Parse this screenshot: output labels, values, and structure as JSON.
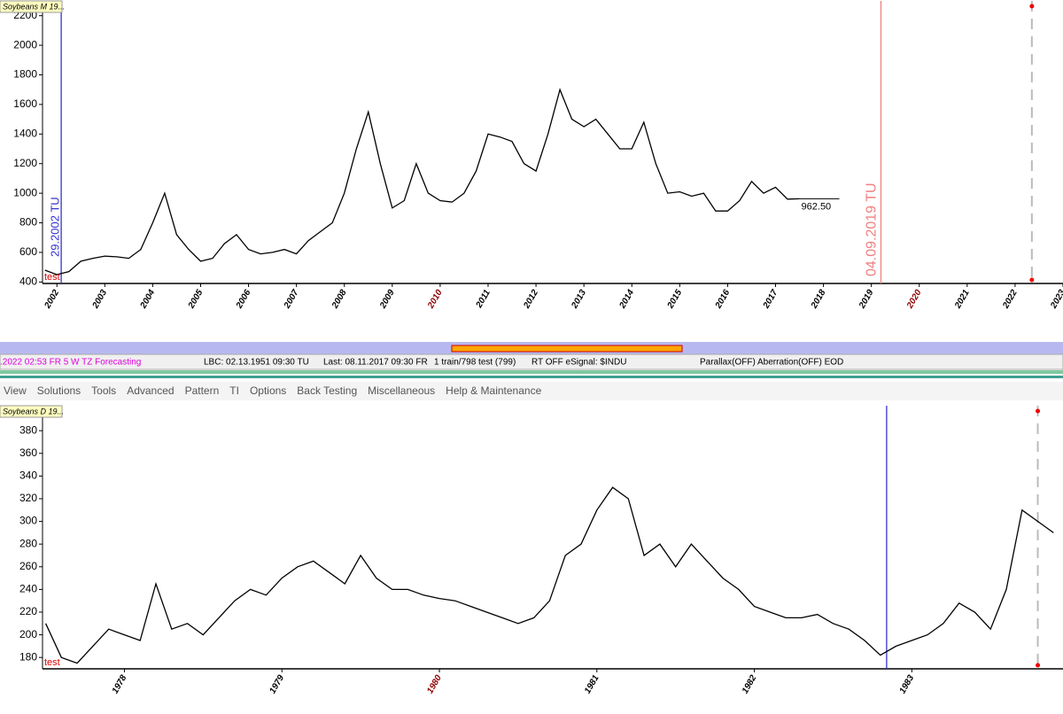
{
  "chart_data": [
    {
      "type": "line",
      "title": "Soybeans M 19...",
      "tag": "test",
      "color": "#000000",
      "xlim": [
        2001.7,
        2023
      ],
      "ylim": [
        390,
        2300
      ],
      "yticks": [
        400,
        600,
        800,
        1000,
        1200,
        1400,
        1600,
        1800,
        2000,
        2200
      ],
      "xticks": [
        2002,
        2003,
        2004,
        2005,
        2006,
        2007,
        2008,
        2009,
        2010,
        2011,
        2012,
        2013,
        2014,
        2015,
        2016,
        2017,
        2018,
        2019,
        2020,
        2021,
        2022,
        2023
      ],
      "xtick_colors": [
        "#000",
        "#000",
        "#000",
        "#000",
        "#000",
        "#000",
        "#000",
        "#000",
        "#8b0000",
        "#000",
        "#000",
        "#000",
        "#000",
        "#000",
        "#000",
        "#000",
        "#000",
        "#000",
        "#8b0000",
        "#000",
        "#000",
        "#000"
      ],
      "x": [
        2001.75,
        2002,
        2002.25,
        2002.5,
        2002.75,
        2003,
        2003.25,
        2003.5,
        2003.75,
        2004,
        2004.25,
        2004.5,
        2004.75,
        2005,
        2005.25,
        2005.5,
        2005.75,
        2006,
        2006.25,
        2006.5,
        2006.75,
        2007,
        2007.25,
        2007.5,
        2007.75,
        2008,
        2008.25,
        2008.5,
        2008.75,
        2009,
        2009.25,
        2009.5,
        2009.75,
        2010,
        2010.25,
        2010.5,
        2010.75,
        2011,
        2011.25,
        2011.5,
        2011.75,
        2012,
        2012.25,
        2012.5,
        2012.75,
        2013,
        2013.25,
        2013.5,
        2013.75,
        2014,
        2014.25,
        2014.5,
        2014.75,
        2015,
        2015.25,
        2015.5,
        2015.75,
        2016,
        2016.25,
        2016.5,
        2016.75,
        2017,
        2017.25,
        2017.5
      ],
      "values": [
        480,
        450,
        470,
        540,
        560,
        575,
        570,
        560,
        620,
        800,
        1000,
        720,
        620,
        540,
        560,
        660,
        720,
        620,
        590,
        600,
        620,
        590,
        680,
        740,
        800,
        1000,
        1300,
        1550,
        1200,
        900,
        950,
        1200,
        1000,
        950,
        940,
        1000,
        1150,
        1400,
        1380,
        1350,
        1200,
        1150,
        1400,
        1700,
        1500,
        1450,
        1500,
        1400,
        1300,
        1300,
        1480,
        1200,
        1000,
        1010,
        980,
        1000,
        880,
        880,
        950,
        1080,
        1000,
        1040,
        960,
        962.5
      ],
      "last_label": "962.50",
      "vlines": [
        {
          "x": 2002.09,
          "color": "#3333cc",
          "label": "29.2002 TU",
          "dash": false
        },
        {
          "x": 2019.2,
          "color": "#f08080",
          "label": "04.09.2019 TU",
          "dash": false
        },
        {
          "x": 2022.35,
          "color": "#bbbbbb",
          "dash": true
        }
      ]
    },
    {
      "type": "line",
      "title": "Soybeans D 19...",
      "tag": "test",
      "color": "#000000",
      "xlim": [
        1977.48,
        1983.96
      ],
      "ylim": [
        170,
        402
      ],
      "yticks": [
        180,
        200,
        220,
        240,
        260,
        280,
        300,
        320,
        340,
        360,
        380
      ],
      "xticks": [
        1978,
        1979,
        1980,
        1981,
        1982,
        1983
      ],
      "xtick_colors": [
        "#000",
        "#000",
        "#8b0000",
        "#000",
        "#000",
        "#000"
      ],
      "x": [
        1977.5,
        1977.6,
        1977.7,
        1977.8,
        1977.9,
        1978,
        1978.1,
        1978.2,
        1978.3,
        1978.4,
        1978.5,
        1978.6,
        1978.7,
        1978.8,
        1978.9,
        1979,
        1979.1,
        1979.2,
        1979.3,
        1979.4,
        1979.5,
        1979.6,
        1979.7,
        1979.8,
        1979.9,
        1980,
        1980.1,
        1980.2,
        1980.3,
        1980.4,
        1980.5,
        1980.6,
        1980.7,
        1980.8,
        1980.9,
        1981,
        1981.1,
        1981.2,
        1981.3,
        1981.4,
        1981.5,
        1981.6,
        1981.7,
        1981.8,
        1981.9,
        1982,
        1982.1,
        1982.2,
        1982.3,
        1982.4,
        1982.5,
        1982.6,
        1982.7,
        1982.8,
        1982.9,
        1983,
        1983.1,
        1983.2,
        1983.3,
        1983.4,
        1983.5,
        1983.6,
        1983.7,
        1983.8,
        1983.9
      ],
      "values": [
        210,
        180,
        175,
        190,
        205,
        200,
        195,
        245,
        205,
        210,
        200,
        215,
        230,
        240,
        235,
        250,
        260,
        265,
        255,
        245,
        270,
        250,
        240,
        240,
        235,
        232,
        230,
        225,
        220,
        215,
        210,
        215,
        230,
        270,
        280,
        310,
        330,
        320,
        270,
        280,
        260,
        280,
        265,
        250,
        240,
        225,
        220,
        215,
        215,
        218,
        210,
        205,
        195,
        182,
        190,
        195,
        200,
        210,
        228,
        220,
        205,
        240,
        310,
        300,
        290
      ],
      "vlines": [
        {
          "x": 1982.84,
          "color": "#3333cc",
          "dash": false
        },
        {
          "x": 1983.8,
          "color": "#bbbbbb",
          "dash": true
        }
      ]
    }
  ],
  "status_bar": [
    ".2022  02:53 FR  5 W TZ Forecasting",
    "LBC: 02.13.1951  09:30 TU",
    "Last: 08.11.2017  09:30 FR",
    "1 train/798 test (799)",
    "RT OFF eSignal: $INDU",
    "Parallax(OFF) Aberration(OFF) EOD"
  ],
  "menu": [
    "View",
    "Solutions",
    "Tools",
    "Advanced",
    "Pattern",
    "TI",
    "Options",
    "Back Testing",
    "Miscellaneous",
    "Help & Maintenance"
  ]
}
